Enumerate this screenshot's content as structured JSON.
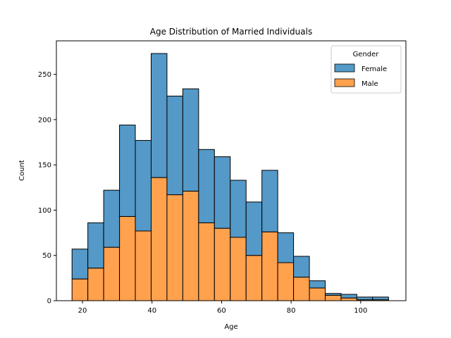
{
  "chart_data": {
    "type": "bar",
    "stacked": true,
    "title": "Age Distribution of Married Individuals",
    "xlabel": "Age",
    "ylabel": "Count",
    "xlim": [
      12.5,
      113
    ],
    "ylim": [
      0,
      287
    ],
    "xticks": [
      20,
      40,
      60,
      80,
      100
    ],
    "yticks": [
      0,
      50,
      100,
      150,
      200,
      250
    ],
    "bin_edges": [
      17,
      21.55,
      26.1,
      30.65,
      35.2,
      39.75,
      44.3,
      48.85,
      53.4,
      57.95,
      62.5,
      67.05,
      71.6,
      76.15,
      80.7,
      85.25,
      89.8,
      94.35,
      98.9,
      103.45,
      108
    ],
    "series": [
      {
        "name": "Male",
        "color": "#ffa14d",
        "values": [
          24,
          36,
          59,
          93,
          77,
          136,
          117,
          121,
          86,
          80,
          70,
          50,
          76,
          42,
          26,
          14,
          6,
          3,
          1,
          1
        ]
      },
      {
        "name": "Female",
        "color": "#5499c7",
        "values": [
          33,
          50,
          63,
          101,
          100,
          137,
          109,
          113,
          81,
          79,
          63,
          59,
          68,
          33,
          23,
          8,
          2,
          4,
          3,
          3
        ]
      }
    ],
    "legend": {
      "title": "Gender",
      "entries": [
        "Female",
        "Male"
      ],
      "position": "top-right"
    }
  }
}
